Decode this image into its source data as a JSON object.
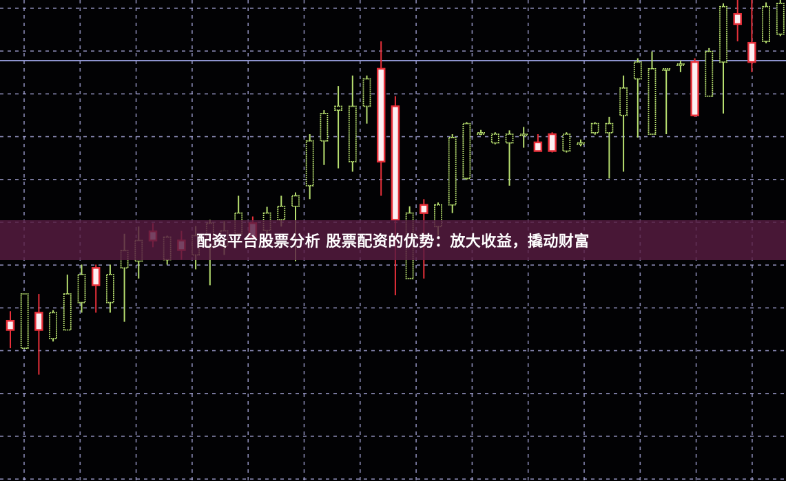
{
  "banner": {
    "title": "配资平台股票分析 股票配资的优势：放大收益，撬动财富"
  },
  "chart_data": {
    "type": "candlestick",
    "title": "",
    "xlabel": "",
    "ylabel": "",
    "ylim": [
      0,
      100
    ],
    "grid": true,
    "colors": {
      "up": "#e8303a",
      "down": "#b8e070",
      "grid": "#b8b8f0",
      "reference_line": "#9aa0e0",
      "banner": "#581c42"
    },
    "reference_level": 87.4,
    "candles": [
      {
        "o": 31.4,
        "h": 35.3,
        "l": 27.6,
        "c": 33.3
      },
      {
        "o": 38.9,
        "h": 38.9,
        "l": 27.6,
        "c": 27.6
      },
      {
        "o": 31.4,
        "h": 38.9,
        "l": 22.1,
        "c": 35.0
      },
      {
        "o": 35.0,
        "h": 35.5,
        "l": 29.0,
        "c": 29.6
      },
      {
        "o": 38.9,
        "h": 42.9,
        "l": 31.4,
        "c": 31.4
      },
      {
        "o": 42.9,
        "h": 45.0,
        "l": 35.0,
        "c": 37.1
      },
      {
        "o": 40.7,
        "h": 45.0,
        "l": 35.0,
        "c": 44.3
      },
      {
        "o": 42.9,
        "h": 45.0,
        "l": 35.0,
        "c": 37.1
      },
      {
        "o": 47.9,
        "h": 51.4,
        "l": 33.1,
        "c": 44.3
      },
      {
        "o": 50.0,
        "h": 52.9,
        "l": 42.1,
        "c": 45.7
      },
      {
        "o": 50.0,
        "h": 53.6,
        "l": 48.6,
        "c": 51.9
      },
      {
        "o": 50.7,
        "h": 51.0,
        "l": 45.0,
        "c": 46.0
      },
      {
        "o": 48.0,
        "h": 52.0,
        "l": 46.0,
        "c": 50.0
      },
      {
        "o": 51.0,
        "h": 53.0,
        "l": 44.0,
        "c": 47.0
      },
      {
        "o": 53.6,
        "h": 54.3,
        "l": 40.7,
        "c": 48.6
      },
      {
        "o": 52.0,
        "h": 54.0,
        "l": 47.0,
        "c": 49.0
      },
      {
        "o": 55.7,
        "h": 59.3,
        "l": 50.0,
        "c": 51.4
      },
      {
        "o": 50.7,
        "h": 55.0,
        "l": 50.0,
        "c": 53.6
      },
      {
        "o": 55.7,
        "h": 57.0,
        "l": 51.0,
        "c": 52.1
      },
      {
        "o": 57.1,
        "h": 59.3,
        "l": 52.9,
        "c": 54.3
      },
      {
        "o": 59.3,
        "h": 60.0,
        "l": 45.7,
        "c": 57.1
      },
      {
        "o": 70.7,
        "h": 72.1,
        "l": 58.6,
        "c": 61.4
      },
      {
        "o": 76.4,
        "h": 77.1,
        "l": 65.7,
        "c": 70.7
      },
      {
        "o": 77.9,
        "h": 82.1,
        "l": 65.0,
        "c": 77.1
      },
      {
        "o": 77.9,
        "h": 84.3,
        "l": 64.3,
        "c": 66.4
      },
      {
        "o": 83.6,
        "h": 84.3,
        "l": 74.3,
        "c": 77.9
      },
      {
        "o": 66.4,
        "h": 91.4,
        "l": 59.3,
        "c": 85.7
      },
      {
        "o": 54.3,
        "h": 80.0,
        "l": 38.6,
        "c": 77.9
      },
      {
        "o": 55.7,
        "h": 57.1,
        "l": 42.1,
        "c": 42.1
      },
      {
        "o": 55.7,
        "h": 58.6,
        "l": 42.1,
        "c": 57.4
      },
      {
        "o": 57.4,
        "h": 57.9,
        "l": 51.0,
        "c": 52.9
      },
      {
        "o": 71.4,
        "h": 72.1,
        "l": 55.7,
        "c": 57.4
      },
      {
        "o": 74.3,
        "h": 74.6,
        "l": 62.6,
        "c": 62.9
      },
      {
        "o": 72.4,
        "h": 73.0,
        "l": 71.9,
        "c": 72.3
      },
      {
        "o": 72.1,
        "h": 72.5,
        "l": 70.0,
        "c": 70.3
      },
      {
        "o": 72.1,
        "h": 72.9,
        "l": 61.4,
        "c": 70.3
      },
      {
        "o": 72.1,
        "h": 73.6,
        "l": 69.3,
        "c": 72.0
      },
      {
        "o": 68.6,
        "h": 72.1,
        "l": 68.6,
        "c": 70.4
      },
      {
        "o": 68.6,
        "h": 72.5,
        "l": 68.3,
        "c": 72.1
      },
      {
        "o": 72.1,
        "h": 72.5,
        "l": 68.3,
        "c": 68.6
      },
      {
        "o": 70.3,
        "h": 71.0,
        "l": 69.6,
        "c": 70.2
      },
      {
        "o": 74.3,
        "h": 74.6,
        "l": 72.0,
        "c": 72.4
      },
      {
        "o": 74.3,
        "h": 75.7,
        "l": 62.9,
        "c": 72.4
      },
      {
        "o": 81.7,
        "h": 84.3,
        "l": 64.3,
        "c": 76.0
      },
      {
        "o": 87.1,
        "h": 87.9,
        "l": 71.4,
        "c": 83.6
      },
      {
        "o": 85.7,
        "h": 89.3,
        "l": 72.1,
        "c": 72.1
      },
      {
        "o": 85.7,
        "h": 85.7,
        "l": 72.1,
        "c": 85.6
      },
      {
        "o": 86.7,
        "h": 87.4,
        "l": 85.0,
        "c": 86.6
      },
      {
        "o": 76.0,
        "h": 87.9,
        "l": 75.7,
        "c": 87.1
      },
      {
        "o": 89.3,
        "h": 90.0,
        "l": 80.0,
        "c": 80.0
      },
      {
        "o": 98.6,
        "h": 99.3,
        "l": 76.4,
        "c": 87.1
      },
      {
        "o": 95.0,
        "h": 100.0,
        "l": 91.4,
        "c": 97.1
      },
      {
        "o": 87.1,
        "h": 100.0,
        "l": 85.0,
        "c": 91.1
      },
      {
        "o": 98.6,
        "h": 99.5,
        "l": 91.0,
        "c": 91.4
      },
      {
        "o": 99.3,
        "h": 100.0,
        "l": 92.5,
        "c": 92.9
      }
    ]
  }
}
